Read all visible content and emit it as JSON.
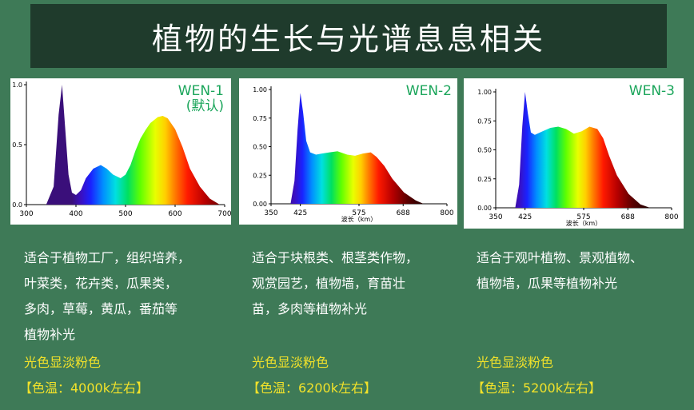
{
  "header": {
    "title": "植物的生长与光谱息息相关"
  },
  "panels": [
    {
      "name": "WEN-1",
      "sub": "(默认)",
      "desc": [
        "适合于植物工厂，组织培养，",
        "叶菜类，花卉类，瓜果类，",
        "多肉，草莓，黄瓜，番茄等",
        "植物补光"
      ],
      "color_note": "光色显淡粉色",
      "temp": "【色温：4000k左右】"
    },
    {
      "name": "WEN-2",
      "sub": "",
      "desc": [
        "适合于块根类、根茎类作物，",
        "观赏园艺，植物墙，育苗壮",
        "苗，多肉等植物补光"
      ],
      "color_note": "光色显淡粉色",
      "temp": "【色温：6200k左右】"
    },
    {
      "name": "WEN-3",
      "sub": "",
      "desc": [
        "适合于观叶植物、景观植物、",
        "植物墙，瓜果等植物补光"
      ],
      "color_note": "光色显淡粉色",
      "temp": "【色温：5200k左右】"
    }
  ],
  "chart_data": [
    {
      "type": "area",
      "xlim": [
        300,
        700
      ],
      "ylim": [
        0,
        1
      ],
      "xticks": [
        "300",
        "400",
        "500",
        "600",
        "700"
      ],
      "yticks": [
        "0.0",
        "0.5",
        "1.0"
      ],
      "xlabel": "",
      "x": [
        340,
        355,
        365,
        372,
        378,
        385,
        392,
        400,
        410,
        420,
        435,
        450,
        462,
        475,
        490,
        500,
        510,
        520,
        530,
        540,
        550,
        565,
        575,
        585,
        600,
        615,
        630,
        650,
        670,
        690
      ],
      "y": [
        0.0,
        0.15,
        0.75,
        1.0,
        0.65,
        0.25,
        0.1,
        0.08,
        0.12,
        0.22,
        0.3,
        0.33,
        0.3,
        0.25,
        0.22,
        0.25,
        0.33,
        0.45,
        0.55,
        0.62,
        0.68,
        0.73,
        0.74,
        0.72,
        0.63,
        0.48,
        0.3,
        0.15,
        0.05,
        0.0
      ]
    },
    {
      "type": "area",
      "xlim": [
        350,
        800
      ],
      "ylim": [
        0,
        1
      ],
      "xticks": [
        "350",
        "425",
        "575",
        "688",
        "800"
      ],
      "yticks": [
        "0.00",
        "0.25",
        "0.50",
        "0.75",
        "1.00"
      ],
      "xlabel": "波长（km）",
      "x": [
        400,
        410,
        418,
        425,
        432,
        440,
        450,
        465,
        480,
        500,
        520,
        545,
        565,
        585,
        605,
        620,
        640,
        660,
        690,
        720,
        740
      ],
      "y": [
        0.0,
        0.2,
        0.65,
        0.97,
        0.8,
        0.55,
        0.45,
        0.43,
        0.44,
        0.45,
        0.46,
        0.43,
        0.42,
        0.44,
        0.45,
        0.41,
        0.33,
        0.22,
        0.1,
        0.03,
        0.0
      ]
    },
    {
      "type": "area",
      "xlim": [
        350,
        800
      ],
      "ylim": [
        0,
        1
      ],
      "xticks": [
        "350",
        "425",
        "575",
        "688",
        "800"
      ],
      "yticks": [
        "0.00",
        "0.25",
        "0.50",
        "0.75",
        "1.00"
      ],
      "xlabel": "波长（km）",
      "x": [
        400,
        410,
        418,
        425,
        432,
        440,
        450,
        470,
        490,
        510,
        530,
        550,
        570,
        590,
        610,
        625,
        640,
        660,
        690,
        720,
        745
      ],
      "y": [
        0.0,
        0.2,
        0.7,
        1.0,
        0.82,
        0.65,
        0.63,
        0.66,
        0.69,
        0.7,
        0.68,
        0.64,
        0.66,
        0.7,
        0.68,
        0.6,
        0.45,
        0.28,
        0.12,
        0.03,
        0.0
      ]
    }
  ]
}
